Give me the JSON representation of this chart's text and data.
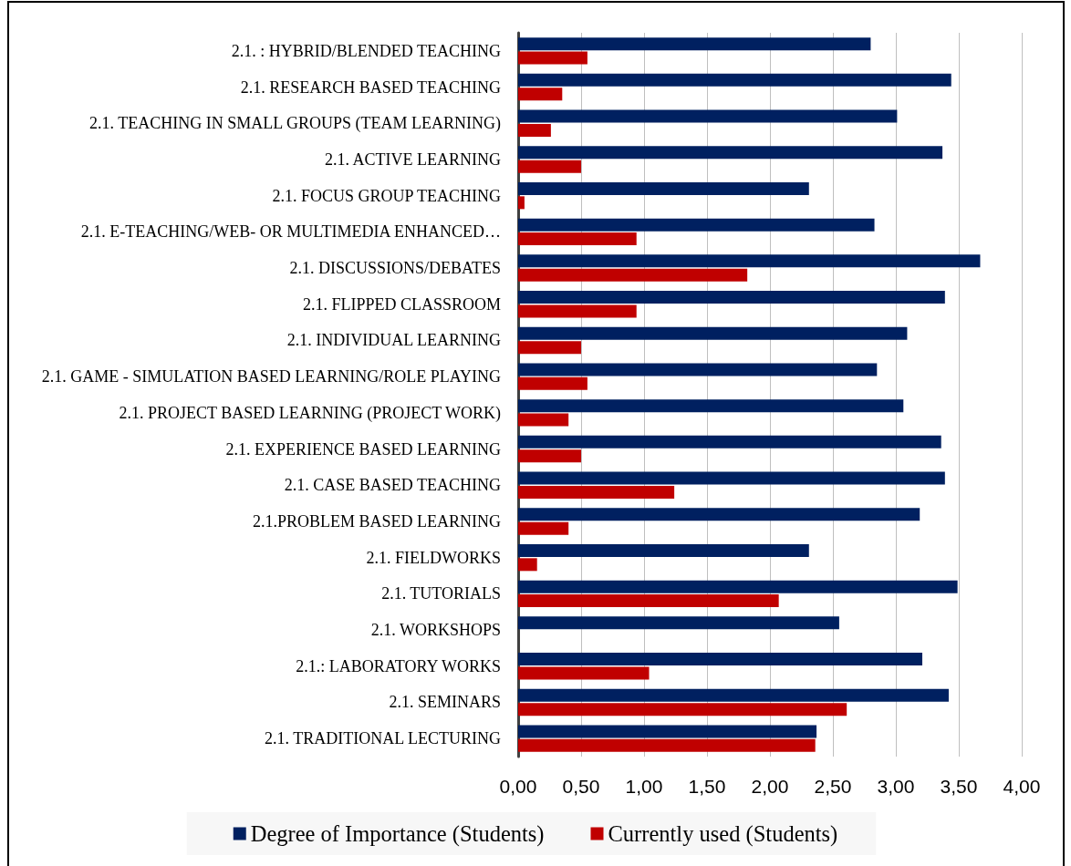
{
  "chart_data": {
    "type": "bar",
    "orientation": "horizontal",
    "categories": [
      "2.1. : HYBRID/BLENDED TEACHING",
      "2.1. RESEARCH BASED TEACHING",
      "2.1. TEACHING IN SMALL GROUPS (TEAM LEARNING)",
      "2.1. ACTIVE LEARNING",
      "2.1. FOCUS GROUP TEACHING",
      "2.1. E-TEACHING/WEB- OR MULTIMEDIA ENHANCED…",
      "2.1. DISCUSSIONS/DEBATES",
      "2.1. FLIPPED CLASSROOM",
      "2.1. INDIVIDUAL LEARNING",
      "2.1. GAME - SIMULATION BASED LEARNING/ROLE PLAYING",
      "2.1. PROJECT BASED LEARNING (PROJECT WORK)",
      "2.1. EXPERIENCE BASED LEARNING",
      "2.1. CASE BASED TEACHING",
      "2.1.PROBLEM BASED LEARNING",
      "2.1. FIELDWORKS",
      "2.1. TUTORIALS",
      "2.1. WORKSHOPS",
      "2.1.: LABORATORY WORKS",
      "2.1. SEMINARS",
      "2.1. TRADITIONAL LECTURING"
    ],
    "series": [
      {
        "name": "Degree of Importance (Students)",
        "color": "#002060",
        "values": [
          2.8,
          3.44,
          3.01,
          3.37,
          2.31,
          2.83,
          3.67,
          3.39,
          3.09,
          2.85,
          3.06,
          3.36,
          3.39,
          3.19,
          2.31,
          3.49,
          2.55,
          3.21,
          3.42,
          2.37
        ]
      },
      {
        "name": "Currently used (Students)",
        "color": "#c00000",
        "values": [
          0.55,
          0.35,
          0.26,
          0.5,
          0.05,
          0.94,
          1.82,
          0.94,
          0.5,
          0.55,
          0.4,
          0.5,
          1.24,
          0.4,
          0.15,
          2.07,
          null,
          1.04,
          2.61,
          2.36
        ]
      }
    ],
    "xlim": [
      0,
      4
    ],
    "xticks": [
      {
        "value": 0,
        "label": "0,00"
      },
      {
        "value": 0.5,
        "label": "0,50"
      },
      {
        "value": 1,
        "label": "1,00"
      },
      {
        "value": 1.5,
        "label": "1,50"
      },
      {
        "value": 2,
        "label": "2,00"
      },
      {
        "value": 2.5,
        "label": "2,50"
      },
      {
        "value": 3,
        "label": "3,00"
      },
      {
        "value": 3.5,
        "label": "3,50"
      },
      {
        "value": 4,
        "label": "4,00"
      }
    ],
    "grid": "x",
    "legend": "bottom"
  }
}
